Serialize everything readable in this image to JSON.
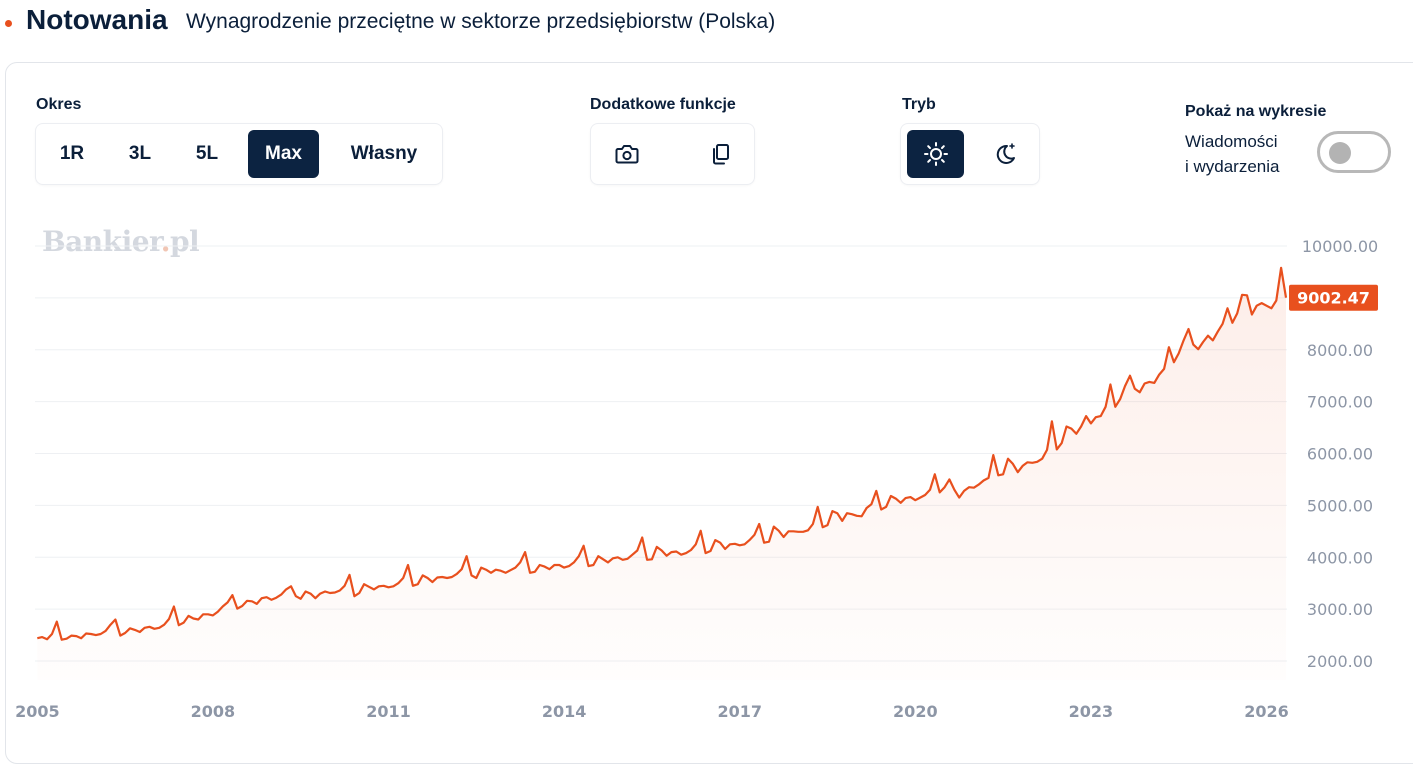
{
  "header": {
    "title": "Notowania",
    "subtitle": "Wynagrodzenie przeciętne w sektorze przedsiębiorstw (Polska)"
  },
  "controls": {
    "period": {
      "label": "Okres",
      "options": [
        "1R",
        "3L",
        "5L",
        "Max",
        "Własny"
      ],
      "selected": "Max"
    },
    "extra": {
      "label": "Dodatkowe funkcje",
      "icons": [
        "camera-icon",
        "copy-icon"
      ]
    },
    "mode": {
      "label": "Tryb",
      "icons": [
        "sun-icon",
        "moon-icon"
      ],
      "selected": "sun-icon"
    },
    "show": {
      "label": "Pokaż na wykresie",
      "toggle_line1": "Wiadomości",
      "toggle_line2": "i wydarzenia",
      "toggle_on": false
    }
  },
  "watermark": {
    "name": "Bankier",
    "dot": ".",
    "tld": "pl"
  },
  "colors": {
    "accent": "#e8501e",
    "navy": "#0c2341",
    "axis_text": "#8d96a6"
  },
  "chart_data": {
    "type": "area",
    "y_ticks": [
      "10000.00",
      "8000.00",
      "7000.00",
      "6000.00",
      "5000.00",
      "4000.00",
      "3000.00",
      "2000.00"
    ],
    "x_ticks": [
      "2005",
      "2008",
      "2011",
      "2014",
      "2017",
      "2020",
      "2023",
      "2026"
    ],
    "ylim": [
      1800,
      10200
    ],
    "xlim": [
      2004.96,
      2026.35
    ],
    "last_value": 9002.47,
    "last_label": "9002.47",
    "series": [
      {
        "values": [
          [
            2005.0,
            2440
          ],
          [
            2005.083,
            2460
          ],
          [
            2005.167,
            2420
          ],
          [
            2005.25,
            2520
          ],
          [
            2005.333,
            2760
          ],
          [
            2005.417,
            2410
          ],
          [
            2005.5,
            2430
          ],
          [
            2005.583,
            2490
          ],
          [
            2005.667,
            2480
          ],
          [
            2005.75,
            2440
          ],
          [
            2005.833,
            2530
          ],
          [
            2005.917,
            2520
          ],
          [
            2006.0,
            2500
          ],
          [
            2006.083,
            2520
          ],
          [
            2006.167,
            2580
          ],
          [
            2006.25,
            2700
          ],
          [
            2006.333,
            2800
          ],
          [
            2006.417,
            2490
          ],
          [
            2006.5,
            2540
          ],
          [
            2006.583,
            2630
          ],
          [
            2006.667,
            2600
          ],
          [
            2006.75,
            2560
          ],
          [
            2006.833,
            2640
          ],
          [
            2006.917,
            2660
          ],
          [
            2007.0,
            2620
          ],
          [
            2007.083,
            2640
          ],
          [
            2007.167,
            2700
          ],
          [
            2007.25,
            2810
          ],
          [
            2007.333,
            3050
          ],
          [
            2007.417,
            2690
          ],
          [
            2007.5,
            2740
          ],
          [
            2007.583,
            2870
          ],
          [
            2007.667,
            2820
          ],
          [
            2007.75,
            2800
          ],
          [
            2007.833,
            2900
          ],
          [
            2007.917,
            2900
          ],
          [
            2008.0,
            2880
          ],
          [
            2008.083,
            2950
          ],
          [
            2008.167,
            3050
          ],
          [
            2008.25,
            3130
          ],
          [
            2008.333,
            3270
          ],
          [
            2008.417,
            3010
          ],
          [
            2008.5,
            3060
          ],
          [
            2008.583,
            3160
          ],
          [
            2008.667,
            3150
          ],
          [
            2008.75,
            3100
          ],
          [
            2008.833,
            3210
          ],
          [
            2008.917,
            3230
          ],
          [
            2009.0,
            3180
          ],
          [
            2009.083,
            3220
          ],
          [
            2009.167,
            3280
          ],
          [
            2009.25,
            3380
          ],
          [
            2009.333,
            3440
          ],
          [
            2009.417,
            3250
          ],
          [
            2009.5,
            3200
          ],
          [
            2009.583,
            3340
          ],
          [
            2009.667,
            3300
          ],
          [
            2009.75,
            3210
          ],
          [
            2009.833,
            3300
          ],
          [
            2009.917,
            3340
          ],
          [
            2010.0,
            3310
          ],
          [
            2010.083,
            3320
          ],
          [
            2010.167,
            3360
          ],
          [
            2010.25,
            3450
          ],
          [
            2010.333,
            3660
          ],
          [
            2010.417,
            3250
          ],
          [
            2010.5,
            3310
          ],
          [
            2010.583,
            3480
          ],
          [
            2010.667,
            3430
          ],
          [
            2010.75,
            3380
          ],
          [
            2010.833,
            3440
          ],
          [
            2010.917,
            3450
          ],
          [
            2011.0,
            3420
          ],
          [
            2011.083,
            3440
          ],
          [
            2011.167,
            3500
          ],
          [
            2011.25,
            3600
          ],
          [
            2011.333,
            3850
          ],
          [
            2011.417,
            3450
          ],
          [
            2011.5,
            3480
          ],
          [
            2011.583,
            3650
          ],
          [
            2011.667,
            3600
          ],
          [
            2011.75,
            3520
          ],
          [
            2011.833,
            3610
          ],
          [
            2011.917,
            3620
          ],
          [
            2012.0,
            3600
          ],
          [
            2012.083,
            3620
          ],
          [
            2012.167,
            3680
          ],
          [
            2012.25,
            3770
          ],
          [
            2012.333,
            4020
          ],
          [
            2012.417,
            3650
          ],
          [
            2012.5,
            3600
          ],
          [
            2012.583,
            3800
          ],
          [
            2012.667,
            3760
          ],
          [
            2012.75,
            3700
          ],
          [
            2012.833,
            3760
          ],
          [
            2012.917,
            3740
          ],
          [
            2013.0,
            3700
          ],
          [
            2013.083,
            3750
          ],
          [
            2013.167,
            3800
          ],
          [
            2013.25,
            3900
          ],
          [
            2013.333,
            4100
          ],
          [
            2013.417,
            3700
          ],
          [
            2013.5,
            3720
          ],
          [
            2013.583,
            3850
          ],
          [
            2013.667,
            3820
          ],
          [
            2013.75,
            3770
          ],
          [
            2013.833,
            3850
          ],
          [
            2013.917,
            3850
          ],
          [
            2014.0,
            3800
          ],
          [
            2014.083,
            3830
          ],
          [
            2014.167,
            3900
          ],
          [
            2014.25,
            4020
          ],
          [
            2014.333,
            4220
          ],
          [
            2014.417,
            3830
          ],
          [
            2014.5,
            3850
          ],
          [
            2014.583,
            4020
          ],
          [
            2014.667,
            3960
          ],
          [
            2014.75,
            3900
          ],
          [
            2014.833,
            3980
          ],
          [
            2014.917,
            4000
          ],
          [
            2015.0,
            3950
          ],
          [
            2015.083,
            3970
          ],
          [
            2015.167,
            4050
          ],
          [
            2015.25,
            4130
          ],
          [
            2015.333,
            4380
          ],
          [
            2015.417,
            3950
          ],
          [
            2015.5,
            3960
          ],
          [
            2015.583,
            4200
          ],
          [
            2015.667,
            4130
          ],
          [
            2015.75,
            4030
          ],
          [
            2015.833,
            4100
          ],
          [
            2015.917,
            4110
          ],
          [
            2016.0,
            4050
          ],
          [
            2016.083,
            4080
          ],
          [
            2016.167,
            4140
          ],
          [
            2016.25,
            4250
          ],
          [
            2016.333,
            4510
          ],
          [
            2016.417,
            4080
          ],
          [
            2016.5,
            4120
          ],
          [
            2016.583,
            4330
          ],
          [
            2016.667,
            4280
          ],
          [
            2016.75,
            4160
          ],
          [
            2016.833,
            4250
          ],
          [
            2016.917,
            4260
          ],
          [
            2017.0,
            4230
          ],
          [
            2017.083,
            4250
          ],
          [
            2017.167,
            4330
          ],
          [
            2017.25,
            4430
          ],
          [
            2017.333,
            4640
          ],
          [
            2017.417,
            4280
          ],
          [
            2017.5,
            4300
          ],
          [
            2017.583,
            4590
          ],
          [
            2017.667,
            4510
          ],
          [
            2017.75,
            4390
          ],
          [
            2017.833,
            4500
          ],
          [
            2017.917,
            4500
          ],
          [
            2018.0,
            4490
          ],
          [
            2018.083,
            4490
          ],
          [
            2018.167,
            4520
          ],
          [
            2018.25,
            4640
          ],
          [
            2018.333,
            4970
          ],
          [
            2018.417,
            4580
          ],
          [
            2018.5,
            4620
          ],
          [
            2018.583,
            4890
          ],
          [
            2018.667,
            4850
          ],
          [
            2018.75,
            4700
          ],
          [
            2018.833,
            4850
          ],
          [
            2018.917,
            4830
          ],
          [
            2019.0,
            4800
          ],
          [
            2019.083,
            4790
          ],
          [
            2019.167,
            4950
          ],
          [
            2019.25,
            5020
          ],
          [
            2019.333,
            5280
          ],
          [
            2019.417,
            4920
          ],
          [
            2019.5,
            4970
          ],
          [
            2019.583,
            5180
          ],
          [
            2019.667,
            5130
          ],
          [
            2019.75,
            5050
          ],
          [
            2019.833,
            5140
          ],
          [
            2019.917,
            5160
          ],
          [
            2020.0,
            5100
          ],
          [
            2020.083,
            5150
          ],
          [
            2020.167,
            5200
          ],
          [
            2020.25,
            5300
          ],
          [
            2020.333,
            5600
          ],
          [
            2020.417,
            5250
          ],
          [
            2020.5,
            5350
          ],
          [
            2020.583,
            5500
          ],
          [
            2020.667,
            5300
          ],
          [
            2020.75,
            5150
          ],
          [
            2020.833,
            5280
          ],
          [
            2020.917,
            5350
          ],
          [
            2021.0,
            5340
          ],
          [
            2021.083,
            5400
          ],
          [
            2021.167,
            5480
          ],
          [
            2021.25,
            5530
          ],
          [
            2021.333,
            5970
          ],
          [
            2021.417,
            5580
          ],
          [
            2021.5,
            5600
          ],
          [
            2021.583,
            5900
          ],
          [
            2021.667,
            5800
          ],
          [
            2021.75,
            5640
          ],
          [
            2021.833,
            5760
          ],
          [
            2021.917,
            5830
          ],
          [
            2022.0,
            5820
          ],
          [
            2022.083,
            5840
          ],
          [
            2022.167,
            5900
          ],
          [
            2022.25,
            6070
          ],
          [
            2022.333,
            6620
          ],
          [
            2022.417,
            6080
          ],
          [
            2022.5,
            6200
          ],
          [
            2022.583,
            6520
          ],
          [
            2022.667,
            6480
          ],
          [
            2022.75,
            6380
          ],
          [
            2022.833,
            6520
          ],
          [
            2022.917,
            6720
          ],
          [
            2023.0,
            6580
          ],
          [
            2023.083,
            6700
          ],
          [
            2023.167,
            6720
          ],
          [
            2023.25,
            6900
          ],
          [
            2023.333,
            7330
          ],
          [
            2023.417,
            6900
          ],
          [
            2023.5,
            7050
          ],
          [
            2023.583,
            7300
          ],
          [
            2023.667,
            7500
          ],
          [
            2023.75,
            7250
          ],
          [
            2023.833,
            7180
          ],
          [
            2023.917,
            7350
          ],
          [
            2024.0,
            7380
          ],
          [
            2024.083,
            7360
          ],
          [
            2024.167,
            7520
          ],
          [
            2024.25,
            7630
          ],
          [
            2024.333,
            8050
          ],
          [
            2024.417,
            7760
          ],
          [
            2024.5,
            7930
          ],
          [
            2024.583,
            8180
          ],
          [
            2024.667,
            8400
          ],
          [
            2024.75,
            8100
          ],
          [
            2024.833,
            8010
          ],
          [
            2024.917,
            8150
          ],
          [
            2025.0,
            8270
          ],
          [
            2025.083,
            8180
          ],
          [
            2025.167,
            8350
          ],
          [
            2025.25,
            8500
          ],
          [
            2025.333,
            8800
          ],
          [
            2025.417,
            8520
          ],
          [
            2025.5,
            8700
          ],
          [
            2025.583,
            9060
          ],
          [
            2025.667,
            9050
          ],
          [
            2025.75,
            8680
          ],
          [
            2025.833,
            8850
          ],
          [
            2025.917,
            8900
          ],
          [
            2026.0,
            8850
          ],
          [
            2026.083,
            8800
          ],
          [
            2026.167,
            8950
          ],
          [
            2026.25,
            9580
          ],
          [
            2026.333,
            9002.47
          ]
        ]
      }
    ]
  }
}
